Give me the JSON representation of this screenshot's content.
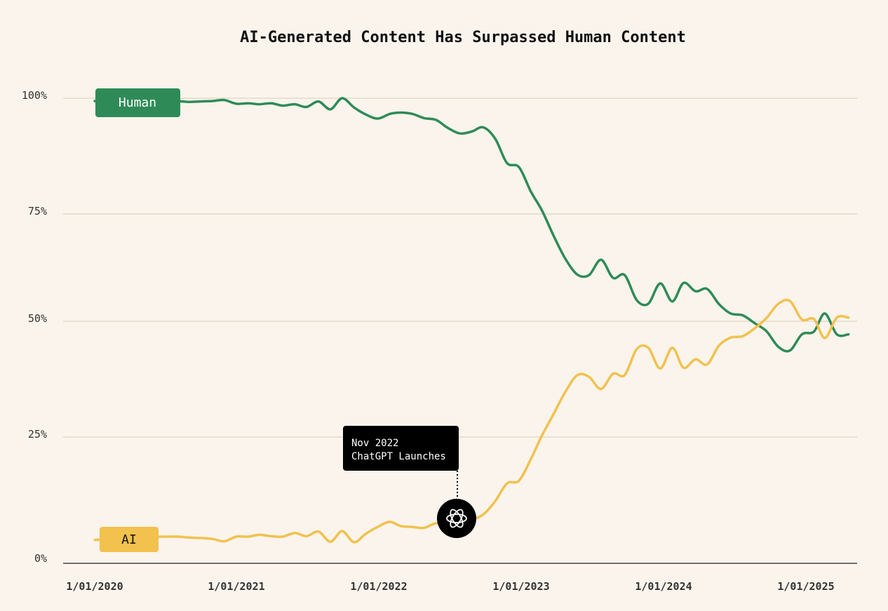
{
  "chart_data": {
    "type": "line",
    "title": "AI-Generated Content Has Surpassed Human Content",
    "xlabel": "",
    "ylabel": "",
    "x_ticks": [
      "1/01/2020",
      "1/01/2021",
      "1/01/2022",
      "1/01/2023",
      "1/01/2024",
      "1/01/2025"
    ],
    "y_ticks": [
      "0%",
      "25%",
      "50%",
      "75%",
      "100%"
    ],
    "ylim": [
      0,
      100
    ],
    "xlim": [
      "2020-01-01",
      "2025-08-01"
    ],
    "grid": true,
    "x": [
      "2020-01-01",
      "2020-02-01",
      "2020-03-01",
      "2020-04-01",
      "2020-05-01",
      "2020-06-01",
      "2020-07-01",
      "2020-08-01",
      "2020-09-01",
      "2020-10-01",
      "2020-11-01",
      "2020-12-01",
      "2021-01-01",
      "2021-02-01",
      "2021-03-01",
      "2021-04-01",
      "2021-05-01",
      "2021-06-01",
      "2021-07-01",
      "2021-08-01",
      "2021-09-01",
      "2021-10-01",
      "2021-11-01",
      "2021-12-01",
      "2022-01-01",
      "2022-02-01",
      "2022-03-01",
      "2022-04-01",
      "2022-05-01",
      "2022-06-01",
      "2022-07-01",
      "2022-08-01",
      "2022-09-01",
      "2022-10-01",
      "2022-11-01",
      "2022-12-01",
      "2023-01-01",
      "2023-02-01",
      "2023-03-01",
      "2023-04-01",
      "2023-05-01",
      "2023-06-01",
      "2023-07-01",
      "2023-08-01",
      "2023-09-01",
      "2023-10-01",
      "2023-11-01",
      "2023-12-01",
      "2024-01-01",
      "2024-02-01",
      "2024-03-01",
      "2024-04-01",
      "2024-05-01",
      "2024-06-01",
      "2024-07-01",
      "2024-08-01",
      "2024-09-01",
      "2024-10-01",
      "2024-11-01",
      "2024-12-01",
      "2025-01-01",
      "2025-02-01",
      "2025-03-01",
      "2025-04-01",
      "2025-05-01",
      "2025-06-01",
      "2025-07-01"
    ],
    "series": [
      {
        "name": "Human",
        "color": "#2E8B57",
        "values": [
          99.4,
          99.3,
          99.5,
          99.6,
          99.4,
          99.3,
          99.5,
          99.4,
          99.2,
          99.3,
          99.4,
          99.6,
          98.8,
          98.9,
          98.7,
          98.9,
          98.4,
          98.7,
          98.1,
          99.3,
          97.6,
          100.0,
          98.0,
          96.5,
          95.6,
          96.6,
          96.9,
          96.6,
          95.7,
          95.3,
          93.6,
          92.4,
          92.8,
          93.7,
          91.2,
          86.0,
          85.1,
          79.8,
          75.8,
          70.2,
          65.3,
          61.9,
          61.8,
          65.1,
          61.2,
          61.8,
          56.4,
          55.6,
          60.0,
          56.1,
          60.1,
          58.3,
          58.8,
          55.5,
          53.5,
          53.1,
          51.4,
          49.7,
          46.3,
          45.5,
          49.0,
          49.6,
          53.5,
          49.0,
          49.0,
          49.0,
          49.0
        ]
      },
      {
        "name": "AI",
        "color": "#F2C14E",
        "values": [
          4.6,
          4.7,
          4.7,
          4.6,
          4.8,
          5.2,
          5.3,
          5.3,
          5.1,
          5.0,
          4.8,
          4.3,
          5.3,
          5.3,
          5.7,
          5.4,
          5.3,
          6.1,
          5.4,
          6.4,
          4.2,
          6.5,
          4.1,
          5.9,
          7.4,
          8.5,
          7.6,
          7.4,
          7.2,
          8.2,
          7.8,
          8.7,
          9.0,
          10.1,
          13.0,
          16.8,
          17.4,
          22.1,
          27.1,
          31.9,
          36.6,
          40.2,
          39.8,
          37.2,
          40.5,
          40.2,
          45.8,
          46.1,
          41.6,
          46.1,
          41.8,
          43.6,
          42.5,
          46.6,
          48.3,
          48.6,
          50.3,
          52.5,
          55.6,
          56.2,
          52.2,
          52.3,
          48.2,
          52.6,
          52.6,
          52.6,
          52.6
        ]
      }
    ],
    "legend": {
      "placement": "inline-left",
      "human_label": "Human",
      "ai_label": "AI"
    },
    "annotation": {
      "line1": "Nov 2022",
      "line2": "ChatGPT Launches",
      "icon": "chatgpt-logo-icon",
      "date": "2022-10-15",
      "value": 9
    },
    "colors": {
      "background": "#FAF4EC",
      "grid": "#D8CDB8",
      "human": "#2E8B57",
      "ai": "#F2C14E",
      "annotation_bg": "#000000"
    }
  }
}
